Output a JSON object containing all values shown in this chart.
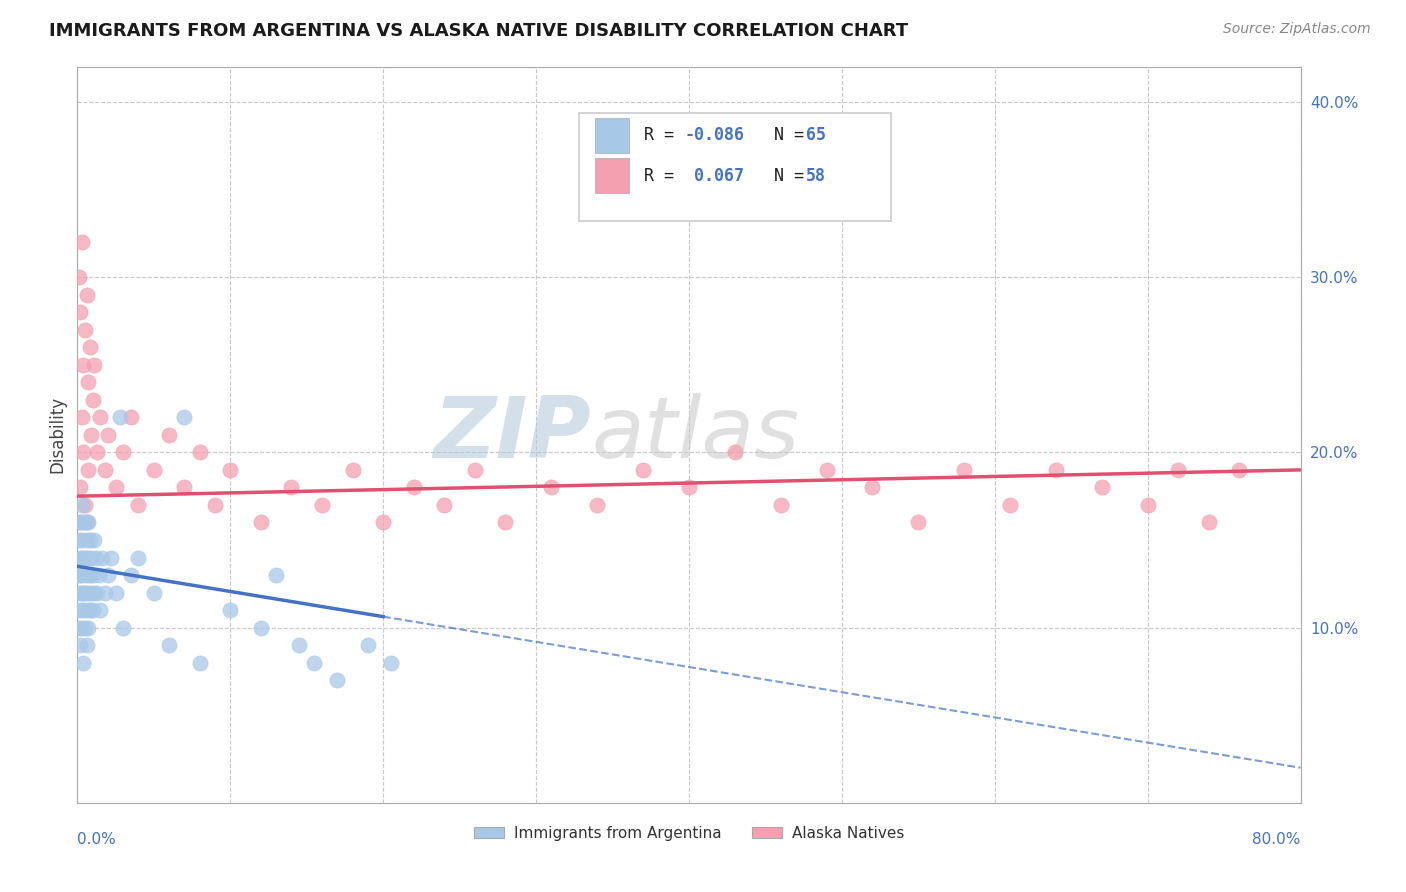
{
  "title": "IMMIGRANTS FROM ARGENTINA VS ALASKA NATIVE DISABILITY CORRELATION CHART",
  "source": "Source: ZipAtlas.com",
  "ylabel": "Disability",
  "right_yticks": [
    "40.0%",
    "30.0%",
    "20.0%",
    "10.0%"
  ],
  "right_ytick_vals": [
    0.4,
    0.3,
    0.2,
    0.1
  ],
  "blue_color": "#a8c8e8",
  "blue_line_color": "#4472c4",
  "pink_color": "#f4a0b0",
  "pink_line_color": "#e05070",
  "watermark_zip": "ZIP",
  "watermark_atlas": "atlas",
  "xmin": 0.0,
  "xmax": 0.8,
  "ymin": 0.0,
  "ymax": 0.42,
  "blue_trend_x0": 0.0,
  "blue_trend_y0": 0.135,
  "blue_trend_x1": 0.8,
  "blue_trend_y1": 0.02,
  "pink_trend_x0": 0.0,
  "pink_trend_y0": 0.175,
  "pink_trend_x1": 0.8,
  "pink_trend_y1": 0.19,
  "blue_scatter_x": [
    0.001,
    0.001,
    0.001,
    0.001,
    0.002,
    0.002,
    0.002,
    0.002,
    0.002,
    0.003,
    0.003,
    0.003,
    0.003,
    0.003,
    0.004,
    0.004,
    0.004,
    0.004,
    0.004,
    0.005,
    0.005,
    0.005,
    0.005,
    0.006,
    0.006,
    0.006,
    0.006,
    0.007,
    0.007,
    0.007,
    0.007,
    0.008,
    0.008,
    0.008,
    0.009,
    0.009,
    0.01,
    0.01,
    0.011,
    0.011,
    0.012,
    0.013,
    0.014,
    0.015,
    0.016,
    0.018,
    0.02,
    0.022,
    0.025,
    0.028,
    0.03,
    0.035,
    0.04,
    0.05,
    0.06,
    0.07,
    0.08,
    0.1,
    0.12,
    0.13,
    0.145,
    0.155,
    0.17,
    0.19,
    0.205
  ],
  "blue_scatter_y": [
    0.13,
    0.15,
    0.12,
    0.1,
    0.16,
    0.14,
    0.11,
    0.13,
    0.09,
    0.15,
    0.12,
    0.17,
    0.1,
    0.14,
    0.16,
    0.12,
    0.13,
    0.11,
    0.08,
    0.14,
    0.16,
    0.12,
    0.1,
    0.15,
    0.13,
    0.11,
    0.09,
    0.14,
    0.16,
    0.12,
    0.1,
    0.13,
    0.15,
    0.11,
    0.14,
    0.12,
    0.13,
    0.11,
    0.15,
    0.12,
    0.14,
    0.12,
    0.13,
    0.11,
    0.14,
    0.12,
    0.13,
    0.14,
    0.12,
    0.22,
    0.1,
    0.13,
    0.14,
    0.12,
    0.09,
    0.22,
    0.08,
    0.11,
    0.1,
    0.13,
    0.09,
    0.08,
    0.07,
    0.09,
    0.08
  ],
  "pink_scatter_x": [
    0.001,
    0.001,
    0.002,
    0.002,
    0.003,
    0.003,
    0.004,
    0.004,
    0.005,
    0.005,
    0.006,
    0.006,
    0.007,
    0.007,
    0.008,
    0.009,
    0.01,
    0.011,
    0.013,
    0.015,
    0.018,
    0.02,
    0.025,
    0.03,
    0.035,
    0.04,
    0.05,
    0.06,
    0.07,
    0.08,
    0.09,
    0.1,
    0.12,
    0.14,
    0.16,
    0.18,
    0.2,
    0.22,
    0.24,
    0.26,
    0.28,
    0.31,
    0.34,
    0.37,
    0.4,
    0.43,
    0.46,
    0.49,
    0.52,
    0.55,
    0.58,
    0.61,
    0.64,
    0.67,
    0.7,
    0.72,
    0.74,
    0.76
  ],
  "pink_scatter_y": [
    0.16,
    0.3,
    0.28,
    0.18,
    0.32,
    0.22,
    0.25,
    0.2,
    0.27,
    0.17,
    0.29,
    0.16,
    0.24,
    0.19,
    0.26,
    0.21,
    0.23,
    0.25,
    0.2,
    0.22,
    0.19,
    0.21,
    0.18,
    0.2,
    0.22,
    0.17,
    0.19,
    0.21,
    0.18,
    0.2,
    0.17,
    0.19,
    0.16,
    0.18,
    0.17,
    0.19,
    0.16,
    0.18,
    0.17,
    0.19,
    0.16,
    0.18,
    0.17,
    0.19,
    0.18,
    0.2,
    0.17,
    0.19,
    0.18,
    0.16,
    0.19,
    0.17,
    0.19,
    0.18,
    0.17,
    0.19,
    0.16,
    0.19
  ]
}
